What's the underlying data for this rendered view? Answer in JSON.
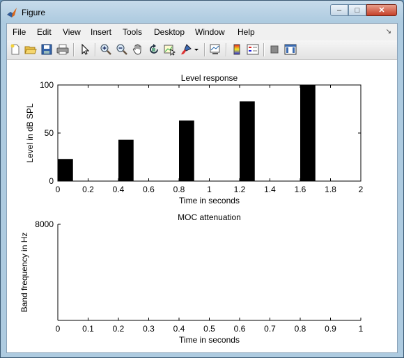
{
  "window": {
    "title": "Figure",
    "minimize_glyph": "–",
    "maximize_glyph": "□",
    "close_glyph": "✕"
  },
  "menu": {
    "items": [
      "File",
      "Edit",
      "View",
      "Insert",
      "Tools",
      "Desktop",
      "Window",
      "Help"
    ],
    "dock_arrow": "↘"
  },
  "toolbar": {
    "icons": [
      "new-figure-icon",
      "open-file-icon",
      "save-icon",
      "print-icon",
      "edit-plot-arrow-icon",
      "zoom-in-icon",
      "zoom-out-icon",
      "pan-hand-icon",
      "rotate-3d-icon",
      "data-cursor-icon",
      "brush-icon",
      "brush-dropdown-icon",
      "link-plot-icon",
      "colorbar-icon",
      "legend-icon",
      "hide-plot-tools-icon",
      "show-plot-tools-icon"
    ]
  },
  "colors": {
    "bar": "#000000",
    "axis": "#000000"
  },
  "chart_data": [
    {
      "type": "bar",
      "title": "Level response",
      "xlabel": "Time in seconds",
      "ylabel": "Level in dB SPL",
      "xlim": [
        0,
        2
      ],
      "ylim": [
        0,
        100
      ],
      "xticks": [
        "0",
        "0.2",
        "0.4",
        "0.6",
        "0.8",
        "1",
        "1.2",
        "1.4",
        "1.6",
        "1.8",
        "2"
      ],
      "yticks": [
        "0",
        "50",
        "100"
      ],
      "bars": [
        {
          "x0": 0.0,
          "x1": 0.1,
          "y": 23
        },
        {
          "x0": 0.4,
          "x1": 0.5,
          "y": 43
        },
        {
          "x0": 0.8,
          "x1": 0.9,
          "y": 63
        },
        {
          "x0": 1.2,
          "x1": 1.3,
          "y": 83
        },
        {
          "x0": 1.6,
          "x1": 1.7,
          "y": 100
        }
      ],
      "grid": false
    },
    {
      "type": "heatmap",
      "title": "MOC attenuation",
      "xlabel": "Time in seconds",
      "ylabel": "Band frequency in Hz",
      "xlim": [
        0,
        1
      ],
      "xticks": [
        "0",
        "0.1",
        "0.2",
        "0.3",
        "0.4",
        "0.5",
        "0.6",
        "0.7",
        "0.8",
        "0.9",
        "1"
      ],
      "yticks": [
        "8000"
      ],
      "grid": false
    }
  ]
}
